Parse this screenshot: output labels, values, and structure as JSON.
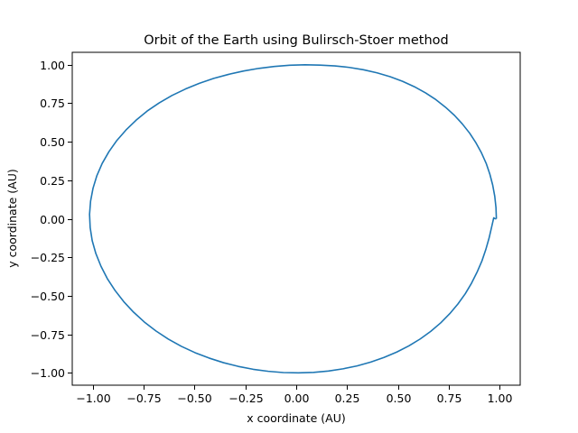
{
  "chart_data": {
    "type": "line",
    "title": "Orbit of the Earth using Bulirsch-Stoer method",
    "xlabel": "x coordinate (AU)",
    "ylabel": "y coordinate (AU)",
    "xlim": [
      -1.1,
      1.1
    ],
    "ylim": [
      -1.08,
      1.08
    ],
    "xticks": [
      -1.0,
      -0.75,
      -0.5,
      -0.25,
      0.0,
      0.25,
      0.5,
      0.75,
      1.0
    ],
    "xtick_labels": [
      "−1.00",
      "−0.75",
      "−0.50",
      "−0.25",
      "0.00",
      "0.25",
      "0.50",
      "0.75",
      "1.00"
    ],
    "yticks": [
      -1.0,
      -0.75,
      -0.5,
      -0.25,
      0.0,
      0.25,
      0.5,
      0.75,
      1.0
    ],
    "ytick_labels": [
      "−1.00",
      "−0.75",
      "−0.50",
      "−0.25",
      "0.00",
      "0.25",
      "0.50",
      "0.75",
      "1.00"
    ],
    "grid": false,
    "series": [
      {
        "color": "#1f77b4",
        "x": [
          0.983,
          0.981,
          0.975,
          0.965,
          0.951,
          0.933,
          0.91,
          0.883,
          0.852,
          0.816,
          0.777,
          0.733,
          0.686,
          0.635,
          0.58,
          0.522,
          0.461,
          0.397,
          0.33,
          0.261,
          0.19,
          0.117,
          0.043,
          -0.032,
          -0.108,
          -0.183,
          -0.258,
          -0.332,
          -0.405,
          -0.476,
          -0.544,
          -0.61,
          -0.673,
          -0.732,
          -0.786,
          -0.836,
          -0.881,
          -0.92,
          -0.953,
          -0.979,
          -0.998,
          -1.01,
          -1.015,
          -1.012,
          -1.002,
          -0.984,
          -0.959,
          -0.928,
          -0.89,
          -0.847,
          -0.799,
          -0.746,
          -0.689,
          -0.628,
          -0.564,
          -0.497,
          -0.428,
          -0.357,
          -0.285,
          -0.211,
          -0.137,
          -0.063,
          0.011,
          0.085,
          0.158,
          0.229,
          0.299,
          0.366,
          0.431,
          0.494,
          0.553,
          0.609,
          0.661,
          0.71,
          0.754,
          0.794,
          0.83,
          0.861,
          0.888,
          0.912,
          0.931,
          0.947,
          0.96,
          0.97,
          0.977,
          0.981,
          0.983
        ],
        "y": [
          0.0,
          0.073,
          0.146,
          0.218,
          0.289,
          0.359,
          0.427,
          0.492,
          0.555,
          0.615,
          0.671,
          0.724,
          0.773,
          0.817,
          0.857,
          0.892,
          0.922,
          0.947,
          0.967,
          0.982,
          0.992,
          0.997,
          0.999,
          0.996,
          0.988,
          0.976,
          0.959,
          0.937,
          0.911,
          0.879,
          0.842,
          0.8,
          0.752,
          0.699,
          0.64,
          0.576,
          0.508,
          0.435,
          0.359,
          0.28,
          0.198,
          0.114,
          0.029,
          -0.057,
          -0.142,
          -0.226,
          -0.308,
          -0.388,
          -0.465,
          -0.538,
          -0.606,
          -0.67,
          -0.728,
          -0.781,
          -0.828,
          -0.869,
          -0.904,
          -0.934,
          -0.958,
          -0.977,
          -0.99,
          -0.998,
          -1.0,
          -0.997,
          -0.988,
          -0.974,
          -0.955,
          -0.93,
          -0.9,
          -0.865,
          -0.825,
          -0.78,
          -0.73,
          -0.675,
          -0.616,
          -0.553,
          -0.487,
          -0.418,
          -0.347,
          -0.274,
          -0.2,
          -0.126,
          -0.052,
          0.006,
          0.0,
          0.0,
          0.0
        ]
      }
    ]
  }
}
